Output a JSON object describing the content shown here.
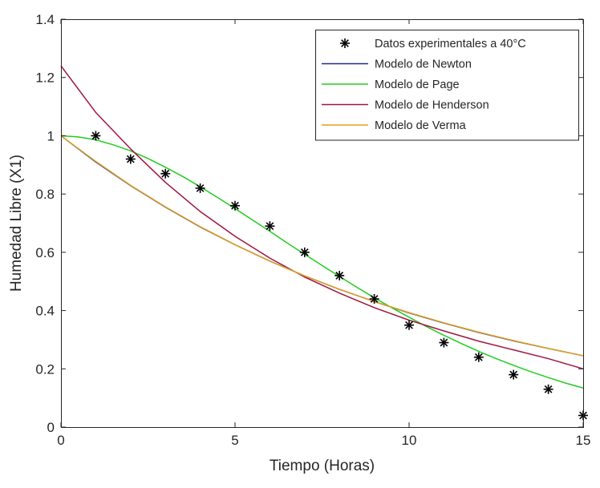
{
  "chart_data": {
    "type": "line",
    "title": "",
    "xlabel": "Tiempo (Horas)",
    "ylabel": "Humedad Libre (X1)",
    "xlim": [
      0,
      15
    ],
    "ylim": [
      0,
      1.4
    ],
    "x_ticks": [
      0,
      5,
      10,
      15
    ],
    "x_tick_labels": [
      "0",
      "5",
      "10",
      "15"
    ],
    "y_ticks": [
      0,
      0.2,
      0.4,
      0.6,
      0.8,
      1,
      1.2,
      1.4
    ],
    "y_tick_labels": [
      "0",
      "0.2",
      "0.4",
      "0.6",
      "0.8",
      "1",
      "1.2",
      "1.4"
    ],
    "grid": false,
    "legend_position": "top-right",
    "series": [
      {
        "name": "Datos experimentales a 40°C",
        "kind": "markers",
        "marker": "asterisk",
        "color": "#000000",
        "x": [
          1,
          2,
          3,
          4,
          5,
          6,
          7,
          8,
          9,
          10,
          11,
          12,
          13,
          14,
          15
        ],
        "y": [
          1.0,
          0.92,
          0.87,
          0.82,
          0.76,
          0.69,
          0.6,
          0.52,
          0.44,
          0.35,
          0.29,
          0.24,
          0.18,
          0.13,
          0.04
        ]
      },
      {
        "name": "Modelo de Newton",
        "kind": "line",
        "color": "#1f2d8a",
        "x": [
          0,
          1,
          2,
          3,
          4,
          5,
          6,
          7,
          8,
          9,
          10,
          11,
          12,
          13,
          14,
          15
        ],
        "y": [
          1.0,
          0.91,
          0.829,
          0.755,
          0.687,
          0.626,
          0.57,
          0.519,
          0.473,
          0.431,
          0.392,
          0.357,
          0.325,
          0.296,
          0.27,
          0.245
        ]
      },
      {
        "name": "Modelo de Page",
        "kind": "line",
        "color": "#22cc22",
        "x": [
          0,
          0.5,
          1,
          1.5,
          2,
          2.5,
          3,
          3.5,
          4,
          4.5,
          5,
          5.5,
          6,
          6.5,
          7,
          7.5,
          8,
          8.5,
          9,
          9.5,
          10,
          10.5,
          11,
          11.5,
          12,
          12.5,
          13,
          13.5,
          14,
          14.5,
          15
        ],
        "y": [
          1.0,
          0.996,
          0.986,
          0.969,
          0.948,
          0.922,
          0.892,
          0.86,
          0.825,
          0.788,
          0.75,
          0.711,
          0.672,
          0.632,
          0.593,
          0.555,
          0.517,
          0.48,
          0.444,
          0.41,
          0.377,
          0.345,
          0.315,
          0.287,
          0.26,
          0.235,
          0.212,
          0.19,
          0.17,
          0.151,
          0.134
        ]
      },
      {
        "name": "Modelo de Henderson",
        "kind": "line",
        "color": "#a0153e",
        "x": [
          0,
          1,
          2,
          3,
          4,
          5,
          6,
          7,
          8,
          9,
          10,
          11,
          12,
          13,
          14,
          15
        ],
        "y": [
          1.24,
          1.08,
          0.955,
          0.84,
          0.74,
          0.655,
          0.58,
          0.515,
          0.46,
          0.41,
          0.367,
          0.33,
          0.295,
          0.265,
          0.235,
          0.2
        ]
      },
      {
        "name": "Modelo de Verma",
        "kind": "line",
        "color": "#e0a020",
        "x": [
          0,
          1,
          2,
          3,
          4,
          5,
          6,
          7,
          8,
          9,
          10,
          11,
          12,
          13,
          14,
          15
        ],
        "y": [
          1.0,
          0.912,
          0.83,
          0.756,
          0.688,
          0.626,
          0.57,
          0.519,
          0.473,
          0.431,
          0.393,
          0.358,
          0.326,
          0.297,
          0.27,
          0.245
        ]
      }
    ]
  }
}
